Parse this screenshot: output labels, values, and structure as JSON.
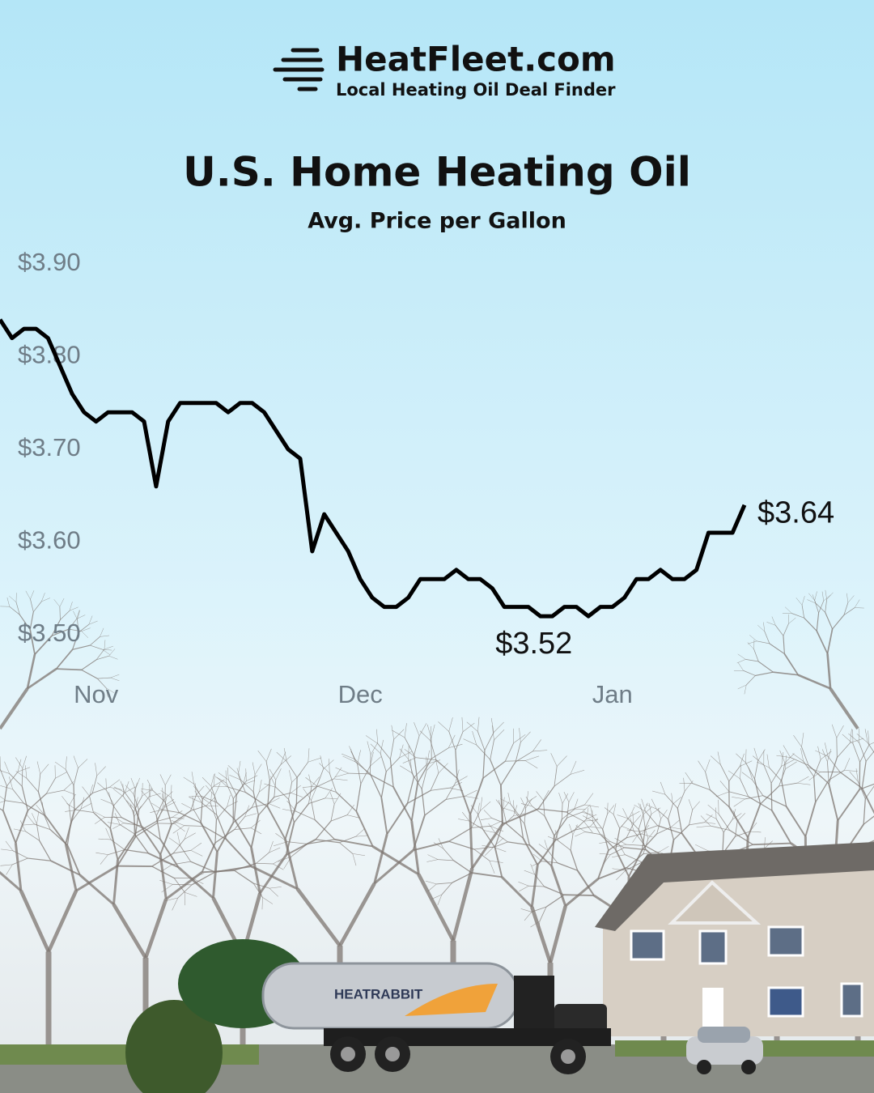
{
  "header": {
    "brand": "HeatFleet.com",
    "tagline": "Local Heating Oil Deal Finder"
  },
  "chart_data": {
    "type": "line",
    "title": "U.S. Home Heating Oil",
    "subtitle": "Avg. Price per Gallon",
    "categories": [
      null,
      null,
      null,
      null,
      null,
      null,
      null,
      null,
      "Nov",
      null,
      null,
      null,
      null,
      null,
      null,
      null,
      null,
      null,
      null,
      null,
      null,
      null,
      null,
      null,
      null,
      null,
      null,
      null,
      null,
      null,
      "Dec",
      null,
      null,
      null,
      null,
      null,
      null,
      null,
      null,
      null,
      null,
      null,
      null,
      null,
      null,
      null,
      null,
      null,
      null,
      null,
      null,
      "Jan",
      null,
      null,
      null,
      null,
      null,
      null,
      null,
      null,
      null,
      null,
      null
    ],
    "series": [
      {
        "name": "Avg. Price per Gallon",
        "color": "#000000",
        "values": [
          3.84,
          3.82,
          3.83,
          3.83,
          3.82,
          3.79,
          3.76,
          3.74,
          3.73,
          3.74,
          3.74,
          3.74,
          3.73,
          3.66,
          3.73,
          3.75,
          3.75,
          3.75,
          3.75,
          3.74,
          3.75,
          3.75,
          3.74,
          3.72,
          3.7,
          3.69,
          3.59,
          3.63,
          3.61,
          3.59,
          3.56,
          3.54,
          3.53,
          3.53,
          3.54,
          3.56,
          3.56,
          3.56,
          3.57,
          3.56,
          3.56,
          3.55,
          3.53,
          3.53,
          3.53,
          3.52,
          3.52,
          3.53,
          3.53,
          3.52,
          3.53,
          3.53,
          3.54,
          3.56,
          3.56,
          3.57,
          3.56,
          3.56,
          3.57,
          3.61,
          3.61,
          3.61,
          3.64
        ],
        "value_labels": [
          null,
          null,
          null,
          null,
          null,
          null,
          null,
          null,
          null,
          null,
          null,
          null,
          null,
          null,
          null,
          null,
          null,
          null,
          null,
          null,
          null,
          null,
          null,
          null,
          null,
          null,
          null,
          null,
          null,
          null,
          null,
          null,
          null,
          null,
          null,
          null,
          null,
          null,
          null,
          null,
          null,
          null,
          null,
          null,
          null,
          "$3.52",
          null,
          null,
          null,
          null,
          null,
          null,
          null,
          null,
          null,
          null,
          null,
          null,
          null,
          null,
          null,
          null,
          "$3.64"
        ]
      }
    ],
    "ylim": [
      3.5,
      3.9
    ],
    "yticks": [
      {
        "value": 3.9,
        "label": "$3.90"
      },
      {
        "value": 3.8,
        "label": "$3.80"
      },
      {
        "value": 3.7,
        "label": "$3.70"
      },
      {
        "value": 3.6,
        "label": "$3.60"
      },
      {
        "value": 3.5,
        "label": "$3.50"
      }
    ],
    "grid": false
  },
  "scene": {
    "truck_label": "HEATRABBIT"
  }
}
